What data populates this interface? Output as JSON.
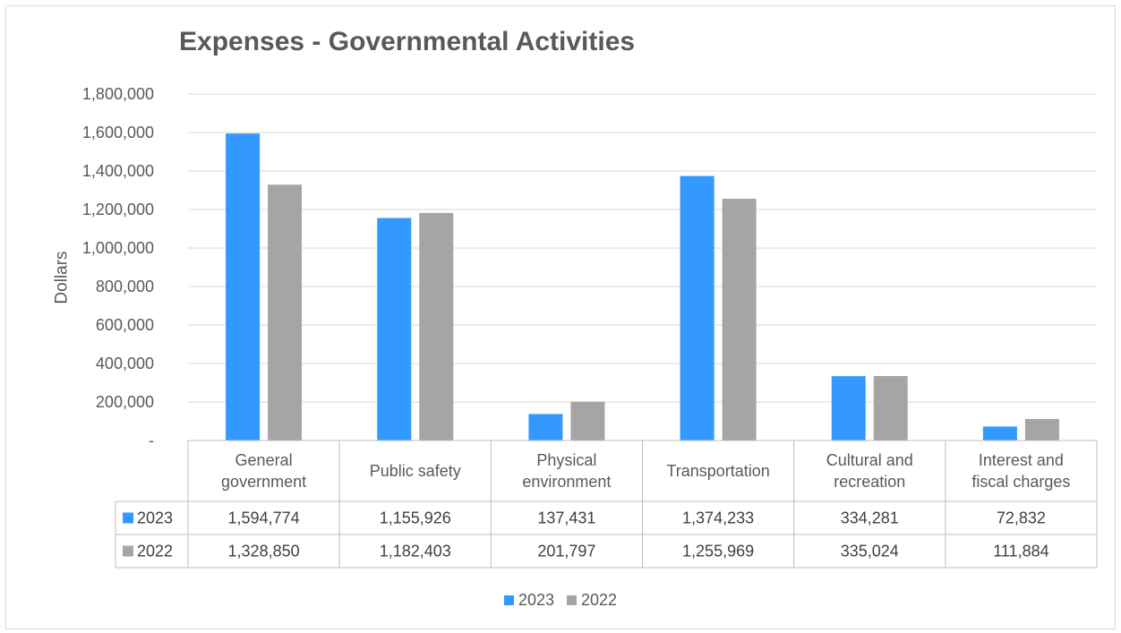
{
  "chart_data": {
    "type": "bar",
    "title": "Expenses - Governmental Activities",
    "ylabel": "Dollars",
    "xlabel": "",
    "ylim": [
      0,
      1800000
    ],
    "y_ticks": [
      "-",
      "200,000",
      "400,000",
      "600,000",
      "800,000",
      "1,000,000",
      "1,200,000",
      "1,400,000",
      "1,600,000",
      "1,800,000"
    ],
    "y_tick_values": [
      0,
      200000,
      400000,
      600000,
      800000,
      1000000,
      1200000,
      1400000,
      1600000,
      1800000
    ],
    "categories": [
      [
        "General",
        "government"
      ],
      [
        "Public safety"
      ],
      [
        "Physical",
        "environment"
      ],
      [
        "Transportation"
      ],
      [
        "Cultural and",
        "recreation"
      ],
      [
        "Interest and",
        "fiscal charges"
      ]
    ],
    "series": [
      {
        "name": "2023",
        "color": "#3399ff",
        "values": [
          1594774,
          1155926,
          137431,
          1374233,
          334281,
          72832
        ],
        "labels": [
          "1,594,774",
          "1,155,926",
          "137,431",
          "1,374,233",
          "334,281",
          "72,832"
        ]
      },
      {
        "name": "2022",
        "color": "#a5a5a5",
        "values": [
          1328850,
          1182403,
          201797,
          1255969,
          335024,
          111884
        ],
        "labels": [
          "1,328,850",
          "1,182,403",
          "201,797",
          "1,255,969",
          "335,024",
          "111,884"
        ]
      }
    ],
    "grid": true,
    "legend": "bottom",
    "data_table": true
  }
}
